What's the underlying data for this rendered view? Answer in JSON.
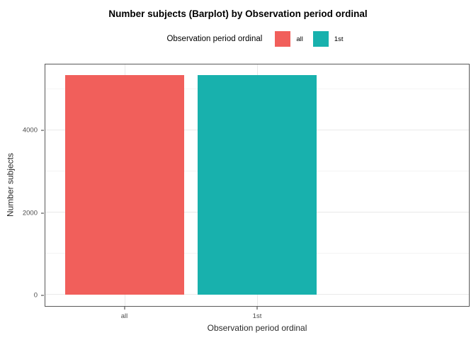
{
  "chart_data": {
    "type": "bar",
    "title": "Number subjects (Barplot) by Observation period ordinal",
    "xlabel": "Observation period ordinal",
    "ylabel": "Number subjects",
    "categories": [
      "all",
      "1st"
    ],
    "values": [
      5350,
      5350
    ],
    "bar_colors": [
      "#F15F5B",
      "#18B1AD"
    ],
    "y_ticks": [
      0,
      2000,
      4000
    ],
    "y_minor_ticks": [
      1000,
      3000,
      5000
    ],
    "ylim": [
      0,
      5610
    ],
    "panel_y_range": [
      -270,
      5610
    ],
    "grid": true,
    "panel_border_color": "#595959",
    "legend": {
      "position": "top",
      "title": "Observation period ordinal",
      "entries": [
        {
          "label": "all",
          "color": "#F15F5B"
        },
        {
          "label": "1st",
          "color": "#18B1AD"
        }
      ]
    }
  }
}
